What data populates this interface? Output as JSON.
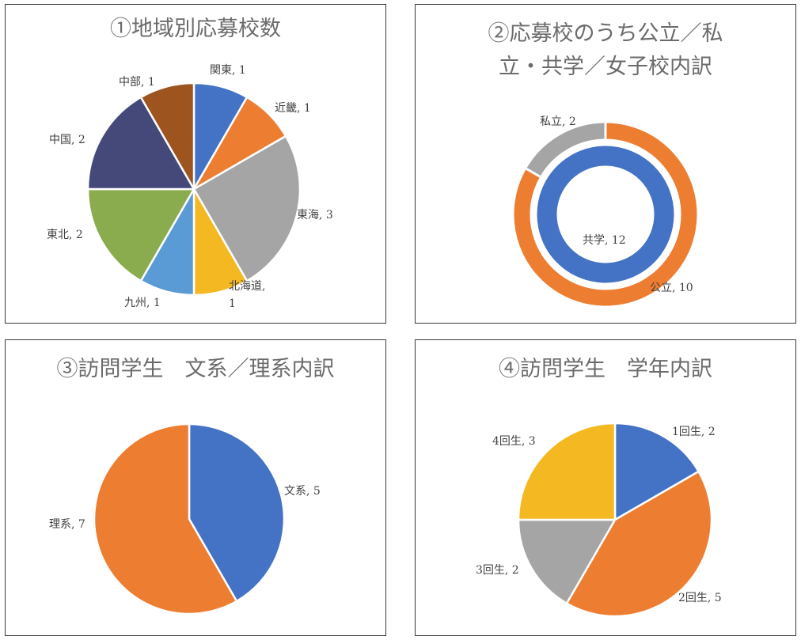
{
  "chart_data": [
    {
      "type": "pie",
      "title": "①地域別応募校数",
      "slices": [
        {
          "name": "関東",
          "value": 1,
          "color": "#4472c4",
          "label": "関東, 1"
        },
        {
          "name": "近畿",
          "value": 1,
          "color": "#ed7d31",
          "label": "近畿, 1"
        },
        {
          "name": "東海",
          "value": 3,
          "color": "#a5a5a5",
          "label": "東海, 3"
        },
        {
          "name": "北海道",
          "value": 1,
          "color": "#f4b922",
          "label": "北海道,\n1"
        },
        {
          "name": "九州",
          "value": 1,
          "color": "#5b9bd5",
          "label": "九州, 1"
        },
        {
          "name": "東北",
          "value": 2,
          "color": "#8aac4e",
          "label": "東北, 2"
        },
        {
          "name": "中国",
          "value": 2,
          "color": "#44497a",
          "label": "中国, 2"
        },
        {
          "name": "中部",
          "value": 1,
          "color": "#9e541f",
          "label": "中部, 1"
        }
      ]
    },
    {
      "type": "doughnut",
      "title": "②応募校のうち公立／私\n立・共学／女子校内訳",
      "rings": [
        {
          "slices": [
            {
              "name": "公立",
              "value": 10,
              "color": "#ed7d31",
              "label": "公立, 10"
            },
            {
              "name": "私立",
              "value": 2,
              "color": "#a5a5a5",
              "label": "私立, 2"
            }
          ]
        },
        {
          "slices": [
            {
              "name": "共学",
              "value": 12,
              "color": "#4472c4",
              "label": "共学, 12"
            }
          ]
        }
      ]
    },
    {
      "type": "pie",
      "title": "③訪問学生　文系／理系内訳",
      "slices": [
        {
          "name": "文系",
          "value": 5,
          "color": "#4472c4",
          "label": "文系, 5"
        },
        {
          "name": "理系",
          "value": 7,
          "color": "#ed7d31",
          "label": "理系, 7"
        }
      ]
    },
    {
      "type": "pie",
      "title": "④訪問学生　学年内訳",
      "slices": [
        {
          "name": "1回生",
          "value": 2,
          "color": "#4472c4",
          "label": "1回生, 2"
        },
        {
          "name": "2回生",
          "value": 5,
          "color": "#ed7d31",
          "label": "2回生, 5"
        },
        {
          "name": "3回生",
          "value": 2,
          "color": "#a5a5a5",
          "label": "3回生, 2"
        },
        {
          "name": "4回生",
          "value": 3,
          "color": "#f4b922",
          "label": "4回生, 3"
        }
      ]
    }
  ]
}
